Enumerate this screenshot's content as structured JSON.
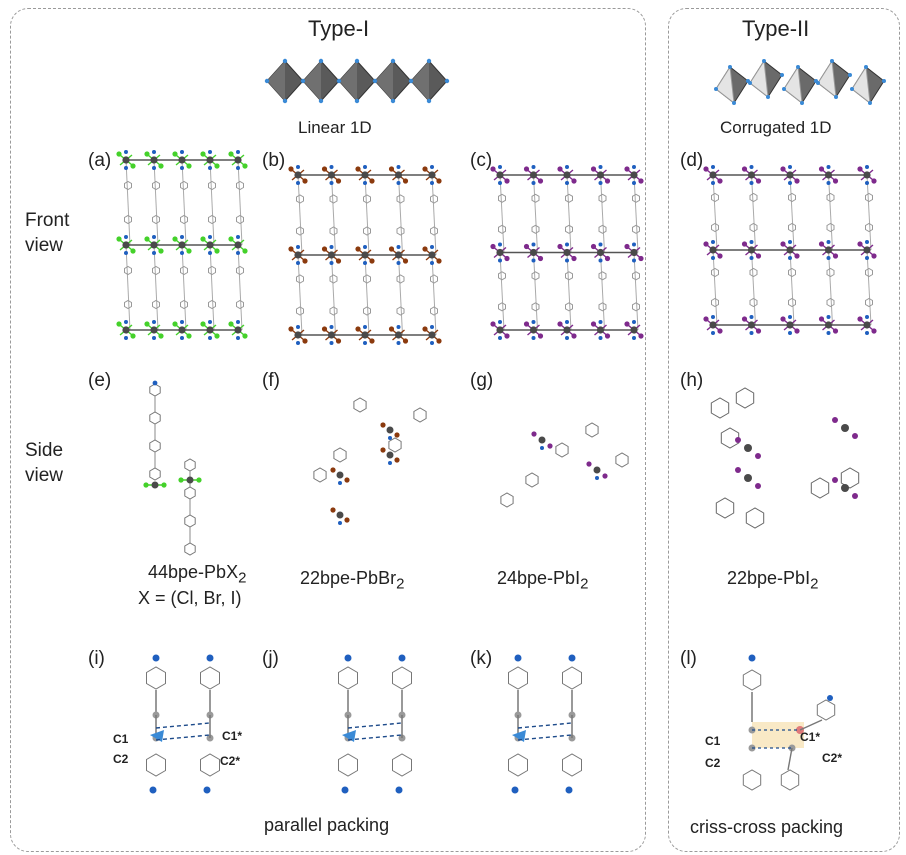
{
  "type1": {
    "title": "Type-I",
    "subtitle": "Linear 1D"
  },
  "type2": {
    "title": "Type-II",
    "subtitle": "Corrugated 1D"
  },
  "row_labels": {
    "front": [
      "Front",
      "view"
    ],
    "side": [
      "Side",
      "view"
    ]
  },
  "panel_labels": [
    "(a)",
    "(b)",
    "(c)",
    "(d)",
    "(e)",
    "(f)",
    "(g)",
    "(h)",
    "(i)",
    "(j)",
    "(k)",
    "(l)"
  ],
  "compounds": {
    "c44": {
      "line1": "44bpe-PbX",
      "sub1": "2",
      "line2": "X = (Cl, Br, I)"
    },
    "c22br": {
      "base": "22bpe-PbBr",
      "sub": "2"
    },
    "c24i": {
      "base": "24bpe-PbI",
      "sub": "2"
    },
    "c22i": {
      "base": "22bpe-PbI",
      "sub": "2"
    }
  },
  "atoms": {
    "c1": "C1",
    "c2": "C2",
    "c1s": "C1*",
    "c2s": "C2*"
  },
  "packing": {
    "parallel": "parallel packing",
    "criss": "criss-cross packing"
  },
  "colors": {
    "pb": "#4a4a4a",
    "n": "#1f5fbf",
    "cl": "#44d12a",
    "br": "#8b3a0e",
    "i": "#7e2a8c",
    "i_light": "#c98ad1",
    "c": "#9a9a9a",
    "bond": "#555555",
    "highlight": "#f7e4b8",
    "dash": "#1c4a8a",
    "wedge": "#3a8ad6"
  }
}
